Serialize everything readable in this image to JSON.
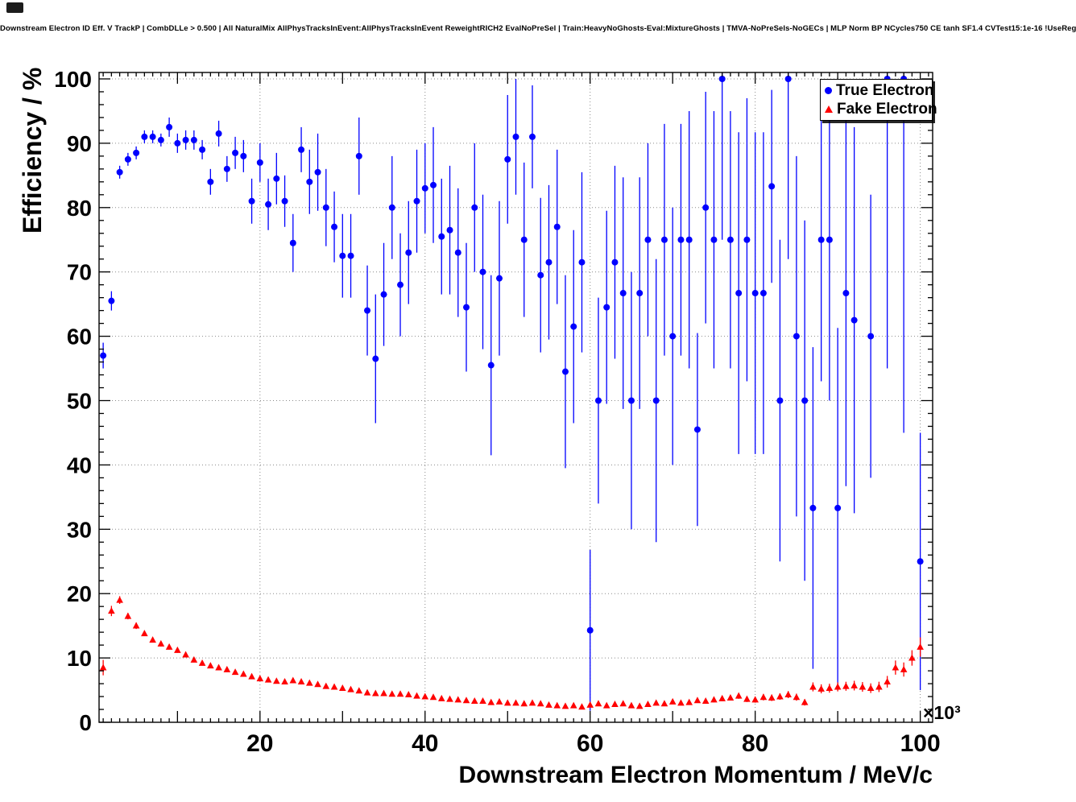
{
  "header": {
    "corner_artifact": "window-corner-mark"
  },
  "chart_data": {
    "type": "scatter",
    "title": "Downstream Electron ID Eff. V TrackP | CombDLLe > 0.500 | All NaturalMix AllPhysTracksInEvent:AllPhysTracksInEvent ReweightRICH2 EvalNoPreSel | Train:HeavyNoGhosts-Eval:MixtureGhosts | TMVA-NoPreSels-NoGECs | MLP Norm BP NCycles750 CE tanh SF1.4 CVTest15:1e-16 !UseReg",
    "xlabel": "Downstream Electron Momentum / MeV/c",
    "ylabel": "Efficiency / %",
    "x_axis_multiplier": "×10³",
    "xlim": [
      0.5,
      101.5
    ],
    "ylim": [
      0,
      101
    ],
    "xticks": [
      20,
      40,
      60,
      80,
      100
    ],
    "yticks": [
      0,
      10,
      20,
      30,
      40,
      50,
      60,
      70,
      80,
      90,
      100
    ],
    "grid": true,
    "legend_position": "top-right",
    "series": [
      {
        "name": "True Electron",
        "marker": "circle",
        "color": "#0000ff",
        "x": [
          1,
          2,
          3,
          4,
          5,
          6,
          7,
          8,
          9,
          10,
          11,
          12,
          13,
          14,
          15,
          16,
          17,
          18,
          19,
          20,
          21,
          22,
          23,
          24,
          25,
          26,
          27,
          28,
          29,
          30,
          31,
          32,
          33,
          34,
          35,
          36,
          37,
          38,
          39,
          40,
          41,
          42,
          43,
          44,
          45,
          46,
          47,
          48,
          49,
          50,
          51,
          52,
          53,
          54,
          55,
          56,
          57,
          58,
          59,
          60,
          61,
          62,
          63,
          64,
          65,
          66,
          67,
          68,
          69,
          70,
          71,
          72,
          73,
          74,
          75,
          76,
          77,
          78,
          79,
          80,
          81,
          82,
          83,
          84,
          85,
          86,
          87,
          88,
          89,
          90,
          91,
          92,
          94,
          96,
          98,
          100
        ],
        "y": [
          57,
          65.5,
          85.5,
          87.5,
          88.5,
          91,
          91,
          90.5,
          92.5,
          90,
          90.5,
          90.5,
          89,
          84,
          91.5,
          86,
          88.5,
          88,
          81,
          87,
          80.5,
          84.5,
          81,
          74.5,
          89,
          84,
          85.5,
          80,
          77,
          72.5,
          72.5,
          88,
          64,
          56.5,
          66.5,
          80,
          68,
          73,
          81,
          83,
          83.5,
          75.5,
          76.5,
          73,
          64.5,
          80,
          70,
          55.5,
          69,
          87.5,
          91,
          75,
          91,
          69.5,
          71.5,
          77,
          54.5,
          61.5,
          71.5,
          14.3,
          50,
          64.5,
          71.5,
          66.7,
          50,
          66.7,
          75,
          50,
          75,
          60,
          75,
          75,
          45.5,
          80,
          75,
          100,
          75,
          66.7,
          75,
          66.7,
          66.7,
          83.3,
          50,
          100,
          60,
          50,
          33.3,
          75,
          75,
          33.3,
          66.7,
          62.5,
          60,
          100,
          100,
          25
        ],
        "yerr": [
          2,
          1.5,
          1,
          1,
          1,
          1,
          1,
          1,
          1.5,
          1.5,
          1.5,
          1.5,
          1.5,
          2,
          2,
          2,
          2.5,
          2.5,
          3.5,
          3,
          4,
          4,
          4,
          4.5,
          3.5,
          5,
          6,
          6,
          5.5,
          6.5,
          6.5,
          6,
          7,
          10,
          8,
          8,
          8,
          8,
          8,
          7,
          9,
          9,
          10,
          10,
          10,
          10,
          12,
          14,
          12,
          10,
          9,
          12,
          8,
          12,
          12,
          12,
          15,
          15,
          14,
          12.5,
          16,
          15,
          15,
          18,
          20,
          18,
          15,
          22,
          18,
          20,
          18,
          20,
          15,
          18,
          20,
          25,
          20,
          25,
          22,
          25,
          25,
          15,
          25,
          28,
          28,
          28,
          25,
          22,
          25,
          28,
          30,
          30,
          22,
          45,
          55,
          20
        ]
      },
      {
        "name": "Fake Electron",
        "marker": "triangle",
        "color": "#ff0000",
        "x": [
          1,
          2,
          3,
          4,
          5,
          6,
          7,
          8,
          9,
          10,
          11,
          12,
          13,
          14,
          15,
          16,
          17,
          18,
          19,
          20,
          21,
          22,
          23,
          24,
          25,
          26,
          27,
          28,
          29,
          30,
          31,
          32,
          33,
          34,
          35,
          36,
          37,
          38,
          39,
          40,
          41,
          42,
          43,
          44,
          45,
          46,
          47,
          48,
          49,
          50,
          51,
          52,
          53,
          54,
          55,
          56,
          57,
          58,
          59,
          60,
          61,
          62,
          63,
          64,
          65,
          66,
          67,
          68,
          69,
          70,
          71,
          72,
          73,
          74,
          75,
          76,
          77,
          78,
          79,
          80,
          81,
          82,
          83,
          84,
          85,
          86,
          87,
          88,
          89,
          90,
          91,
          92,
          93,
          94,
          95,
          96,
          97,
          98,
          99,
          100
        ],
        "y": [
          8.5,
          17.3,
          19,
          16.5,
          15,
          13.8,
          12.8,
          12.2,
          11.7,
          11.2,
          10.5,
          9.7,
          9.2,
          8.8,
          8.5,
          8.2,
          7.8,
          7.5,
          7.1,
          6.8,
          6.6,
          6.4,
          6.3,
          6.5,
          6.3,
          6.1,
          5.9,
          5.6,
          5.5,
          5.3,
          5.1,
          4.9,
          4.6,
          4.5,
          4.5,
          4.4,
          4.4,
          4.3,
          4.1,
          4.0,
          3.9,
          3.7,
          3.6,
          3.5,
          3.4,
          3.3,
          3.3,
          3.1,
          3.2,
          3.0,
          3.0,
          2.9,
          3.0,
          2.9,
          2.7,
          2.6,
          2.5,
          2.6,
          2.4,
          2.7,
          2.9,
          2.6,
          2.8,
          2.9,
          2.6,
          2.5,
          2.8,
          3.0,
          2.9,
          3.2,
          3.0,
          3.1,
          3.4,
          3.3,
          3.5,
          3.7,
          3.8,
          4.1,
          3.6,
          3.5,
          3.9,
          3.8,
          4.0,
          4.3,
          3.9,
          3.1,
          5.5,
          5.2,
          5.3,
          5.5,
          5.6,
          5.7,
          5.5,
          5.3,
          5.5,
          6.3,
          8.5,
          8.2,
          10.0,
          11.7
        ],
        "yerr": [
          1.2,
          0.8,
          0.6,
          0.5,
          0.5,
          0.4,
          0.4,
          0.4,
          0.4,
          0.4,
          0.4,
          0.35,
          0.35,
          0.35,
          0.35,
          0.3,
          0.3,
          0.3,
          0.3,
          0.3,
          0.3,
          0.3,
          0.3,
          0.3,
          0.3,
          0.3,
          0.3,
          0.3,
          0.3,
          0.3,
          0.3,
          0.3,
          0.3,
          0.3,
          0.3,
          0.3,
          0.3,
          0.3,
          0.3,
          0.3,
          0.3,
          0.3,
          0.3,
          0.3,
          0.3,
          0.3,
          0.3,
          0.3,
          0.3,
          0.3,
          0.3,
          0.3,
          0.3,
          0.3,
          0.3,
          0.3,
          0.3,
          0.3,
          0.3,
          0.3,
          0.3,
          0.3,
          0.3,
          0.3,
          0.3,
          0.3,
          0.3,
          0.35,
          0.35,
          0.35,
          0.35,
          0.35,
          0.4,
          0.4,
          0.4,
          0.4,
          0.4,
          0.45,
          0.45,
          0.45,
          0.5,
          0.5,
          0.5,
          0.55,
          0.55,
          0.5,
          0.7,
          0.7,
          0.7,
          0.7,
          0.7,
          0.75,
          0.75,
          0.75,
          0.8,
          0.9,
          1.1,
          1.1,
          1.2,
          1.5
        ]
      }
    ]
  }
}
